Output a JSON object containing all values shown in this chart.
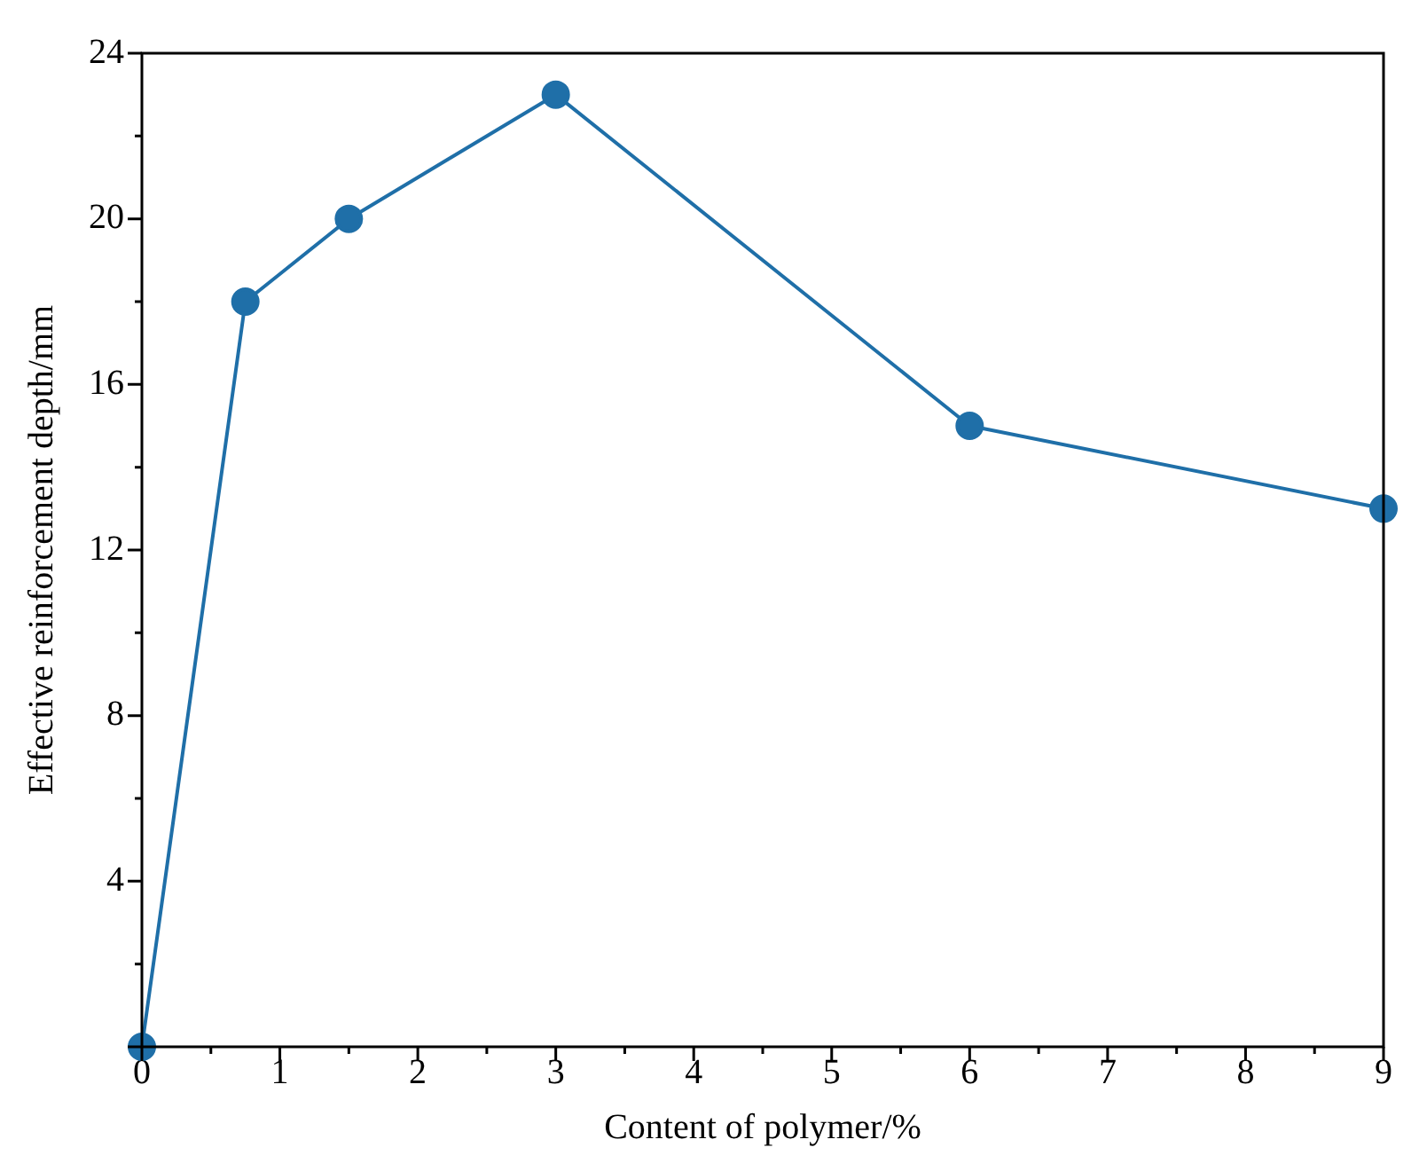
{
  "chart_data": {
    "type": "line",
    "xlabel": "Content of polymer/%",
    "ylabel": "Effective reinforcement depth/mm",
    "x": [
      0,
      0.75,
      1.5,
      3,
      6,
      9
    ],
    "series": [
      {
        "color": "#1f6fa8",
        "values": [
          0,
          18,
          20,
          23,
          15,
          13
        ]
      }
    ],
    "xlim": [
      0,
      9
    ],
    "xticks": [
      0,
      1,
      2,
      3,
      4,
      5,
      6,
      7,
      8,
      9
    ],
    "ylim": [
      0,
      24
    ],
    "yticks": [
      {
        "value": 0,
        "label": null
      },
      4,
      8,
      12,
      16,
      20,
      24
    ],
    "marker": "circle",
    "line_style": "solid",
    "grid": false,
    "legend": false
  }
}
